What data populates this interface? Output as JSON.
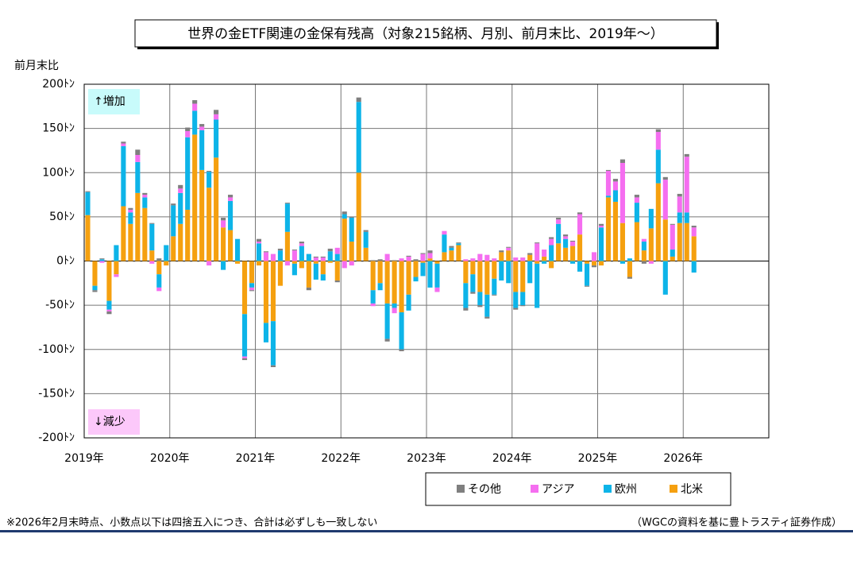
{
  "chart_data": {
    "type": "bar",
    "stacked": true,
    "title": "世界の金ETF関連の金保有残高（対象215銘柄、月別、前月末比、2019年〜）",
    "y_label": "前月末比",
    "annotations": [
      "↑増加",
      "↓減少"
    ],
    "footnote": "※2026年2月末時点、小数点以下は四捨五入につき、合計は必ずしも一致しない",
    "source": "（WGCの資料を基に豊トラスティ証券作成）",
    "categories": [
      "2019年",
      null,
      null,
      null,
      null,
      null,
      null,
      null,
      null,
      null,
      null,
      null,
      "2020年",
      null,
      null,
      null,
      null,
      null,
      null,
      null,
      null,
      null,
      null,
      null,
      "2021年",
      null,
      null,
      null,
      null,
      null,
      null,
      null,
      null,
      null,
      null,
      null,
      "2022年",
      null,
      null,
      null,
      null,
      null,
      null,
      null,
      null,
      null,
      null,
      null,
      "2023年",
      null,
      null,
      null,
      null,
      null,
      null,
      null,
      null,
      null,
      null,
      null,
      "2024年",
      null,
      null,
      null,
      null,
      null,
      null,
      null,
      null,
      null,
      null,
      null,
      "2025年",
      null,
      null,
      null,
      null,
      null,
      null,
      null,
      null,
      null,
      null,
      null,
      "2026年",
      null,
      null,
      null,
      null,
      null,
      null,
      null,
      null,
      null,
      null,
      null
    ],
    "series": [
      {
        "name": "北米",
        "color": "#f5a00f",
        "values": [
          52,
          -28,
          0,
          -45,
          -15,
          62,
          42,
          77,
          60,
          12,
          -15,
          -5,
          28,
          42,
          58,
          143,
          103,
          83,
          117,
          38,
          35,
          -3,
          -60,
          -25,
          -5,
          -70,
          -68,
          -28,
          33,
          -3,
          -8,
          -30,
          -3,
          -15,
          -2,
          -22,
          48,
          22,
          100,
          15,
          -33,
          -25,
          -48,
          -48,
          -58,
          -38,
          -18,
          -2,
          3,
          -3,
          10,
          12,
          18,
          -25,
          -15,
          -35,
          -38,
          -20,
          10,
          12,
          -35,
          -35,
          7,
          -3,
          5,
          -8,
          20,
          15,
          17,
          30,
          -3,
          -5,
          -5,
          72,
          67,
          43,
          -18,
          44,
          12,
          37,
          88,
          47,
          5,
          43,
          43,
          28,
          null,
          null,
          null,
          null,
          null,
          null,
          null,
          null,
          null,
          null
        ]
      },
      {
        "name": "欧州",
        "color": "#0db4e8",
        "values": [
          26,
          -5,
          2,
          -10,
          18,
          68,
          13,
          35,
          12,
          30,
          -15,
          18,
          35,
          35,
          82,
          27,
          45,
          18,
          43,
          -10,
          33,
          25,
          -48,
          -5,
          20,
          -22,
          -50,
          12,
          32,
          -13,
          17,
          8,
          -18,
          -7,
          11,
          8,
          5,
          27,
          80,
          18,
          -15,
          -8,
          -40,
          -5,
          -42,
          -18,
          -5,
          -15,
          -30,
          -27,
          20,
          3,
          2,
          -28,
          -20,
          -15,
          -25,
          -18,
          -22,
          -25,
          -18,
          -15,
          -25,
          -50,
          -3,
          18,
          22,
          10,
          -3,
          -12,
          -25,
          0,
          38,
          2,
          13,
          -3,
          3,
          22,
          10,
          22,
          38,
          -38,
          8,
          12,
          12,
          -13,
          null,
          null,
          null,
          null,
          null,
          null,
          null,
          null,
          null,
          null
        ]
      },
      {
        "name": "アジア",
        "color": "#f56ef0",
        "values": [
          0,
          0,
          -2,
          -2,
          -3,
          3,
          3,
          8,
          3,
          -3,
          -4,
          0,
          0,
          5,
          7,
          8,
          4,
          -5,
          6,
          8,
          4,
          0,
          -2,
          -3,
          2,
          10,
          8,
          0,
          -5,
          12,
          3,
          0,
          4,
          4,
          0,
          7,
          -8,
          -5,
          0,
          0,
          -3,
          0,
          8,
          -6,
          3,
          5,
          0,
          8,
          6,
          -5,
          4,
          0,
          0,
          2,
          3,
          8,
          7,
          3,
          0,
          3,
          4,
          4,
          0,
          20,
          8,
          7,
          5,
          3,
          5,
          23,
          0,
          10,
          2,
          28,
          10,
          68,
          0,
          6,
          3,
          -3,
          20,
          45,
          28,
          18,
          63,
          10,
          null,
          null,
          null,
          null,
          null,
          null,
          null,
          null,
          null,
          null
        ]
      },
      {
        "name": "その他",
        "color": "#7f7f7f",
        "values": [
          1,
          -2,
          1,
          -3,
          0,
          2,
          2,
          6,
          2,
          1,
          3,
          0,
          2,
          4,
          4,
          4,
          3,
          1,
          5,
          3,
          3,
          0,
          -2,
          -1,
          3,
          1,
          -2,
          2,
          1,
          1,
          2,
          -3,
          1,
          1,
          3,
          -2,
          3,
          1,
          5,
          2,
          1,
          2,
          -3,
          1,
          -2,
          1,
          2,
          1,
          3,
          0,
          0,
          2,
          1,
          -3,
          -2,
          -2,
          -2,
          -1,
          2,
          1,
          -2,
          -1,
          2,
          1,
          0,
          2,
          2,
          2,
          1,
          2,
          -1,
          -2,
          2,
          1,
          3,
          4,
          -2,
          3,
          -3,
          0,
          3,
          3,
          1,
          3,
          3,
          2,
          null,
          null,
          null,
          null,
          null,
          null,
          null,
          null,
          null,
          null
        ]
      }
    ],
    "ylim": [
      -200,
      200
    ],
    "yticks": [
      {
        "value": -200,
        "label": "-200ﾄﾝ"
      },
      {
        "value": -150,
        "label": "-150ﾄﾝ"
      },
      {
        "value": -100,
        "label": "-100ﾄﾝ"
      },
      {
        "value": -50,
        "label": "-50ﾄﾝ"
      },
      {
        "value": 0,
        "label": "0ﾄﾝ"
      },
      {
        "value": 50,
        "label": "50ﾄﾝ"
      },
      {
        "value": 100,
        "label": "100ﾄﾝ"
      },
      {
        "value": 150,
        "label": "150ﾄﾝ"
      },
      {
        "value": 200,
        "label": "200ﾄﾝ"
      }
    ],
    "grid": true,
    "legend": "bottom-right"
  }
}
